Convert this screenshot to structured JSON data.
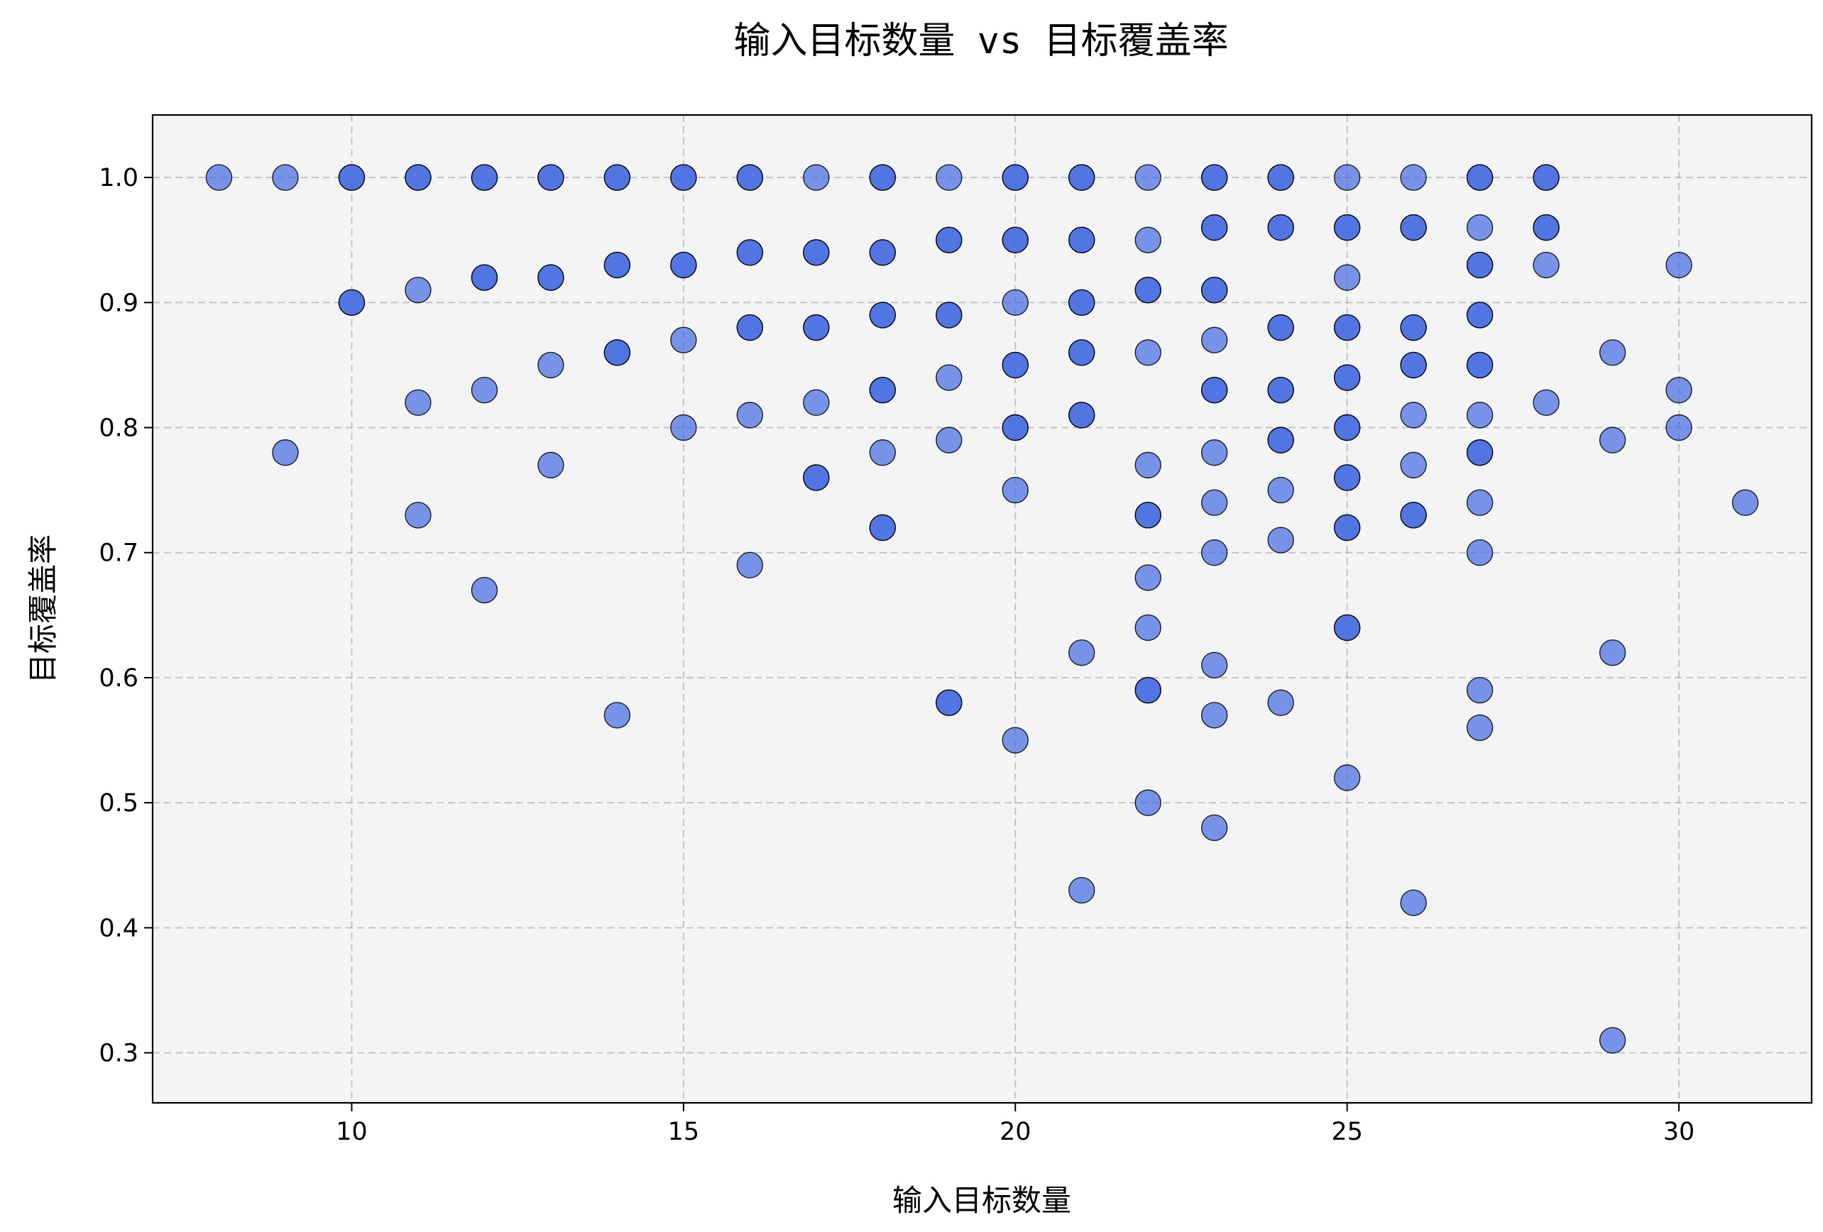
{
  "chart_data": {
    "type": "scatter",
    "title": "输入目标数量 vs 目标覆盖率",
    "xlabel": "输入目标数量",
    "ylabel": "目标覆盖率",
    "xlim": [
      7,
      32
    ],
    "ylim": [
      0.26,
      1.05
    ],
    "xticks": [
      10,
      15,
      20,
      25,
      30
    ],
    "yticks": [
      0.3,
      0.4,
      0.5,
      0.6,
      0.7,
      0.8,
      0.9,
      1.0
    ],
    "grid": true,
    "marker_color": "#4169e1",
    "background_color": "#f4f4f4",
    "series": [
      {
        "points": [
          [
            8,
            1.0
          ],
          [
            9,
            1.0
          ],
          [
            9,
            0.78
          ],
          [
            10,
            1.0
          ],
          [
            10,
            1.0
          ],
          [
            10,
            0.9
          ],
          [
            10,
            0.9
          ],
          [
            11,
            1.0
          ],
          [
            11,
            1.0
          ],
          [
            11,
            0.91
          ],
          [
            11,
            0.82
          ],
          [
            11,
            0.73
          ],
          [
            12,
            1.0
          ],
          [
            12,
            1.0
          ],
          [
            12,
            0.92
          ],
          [
            12,
            0.92
          ],
          [
            12,
            0.83
          ],
          [
            12,
            0.67
          ],
          [
            13,
            1.0
          ],
          [
            13,
            1.0
          ],
          [
            13,
            0.92
          ],
          [
            13,
            0.92
          ],
          [
            13,
            0.85
          ],
          [
            13,
            0.77
          ],
          [
            14,
            1.0
          ],
          [
            14,
            1.0
          ],
          [
            14,
            0.93
          ],
          [
            14,
            0.93
          ],
          [
            14,
            0.86
          ],
          [
            14,
            0.86
          ],
          [
            14,
            0.57
          ],
          [
            15,
            1.0
          ],
          [
            15,
            1.0
          ],
          [
            15,
            0.93
          ],
          [
            15,
            0.93
          ],
          [
            15,
            0.87
          ],
          [
            15,
            0.8
          ],
          [
            16,
            1.0
          ],
          [
            16,
            1.0
          ],
          [
            16,
            0.94
          ],
          [
            16,
            0.94
          ],
          [
            16,
            0.88
          ],
          [
            16,
            0.88
          ],
          [
            16,
            0.81
          ],
          [
            16,
            0.69
          ],
          [
            17,
            1.0
          ],
          [
            17,
            0.94
          ],
          [
            17,
            0.94
          ],
          [
            17,
            0.88
          ],
          [
            17,
            0.88
          ],
          [
            17,
            0.82
          ],
          [
            17,
            0.76
          ],
          [
            17,
            0.76
          ],
          [
            18,
            1.0
          ],
          [
            18,
            1.0
          ],
          [
            18,
            0.94
          ],
          [
            18,
            0.94
          ],
          [
            18,
            0.89
          ],
          [
            18,
            0.89
          ],
          [
            18,
            0.83
          ],
          [
            18,
            0.83
          ],
          [
            18,
            0.78
          ],
          [
            18,
            0.72
          ],
          [
            18,
            0.72
          ],
          [
            19,
            1.0
          ],
          [
            19,
            0.95
          ],
          [
            19,
            0.95
          ],
          [
            19,
            0.89
          ],
          [
            19,
            0.89
          ],
          [
            19,
            0.84
          ],
          [
            19,
            0.79
          ],
          [
            19,
            0.58
          ],
          [
            19,
            0.58
          ],
          [
            20,
            1.0
          ],
          [
            20,
            1.0
          ],
          [
            20,
            0.95
          ],
          [
            20,
            0.95
          ],
          [
            20,
            0.9
          ],
          [
            20,
            0.85
          ],
          [
            20,
            0.85
          ],
          [
            20,
            0.8
          ],
          [
            20,
            0.8
          ],
          [
            20,
            0.75
          ],
          [
            20,
            0.55
          ],
          [
            21,
            1.0
          ],
          [
            21,
            1.0
          ],
          [
            21,
            0.95
          ],
          [
            21,
            0.95
          ],
          [
            21,
            0.9
          ],
          [
            21,
            0.9
          ],
          [
            21,
            0.86
          ],
          [
            21,
            0.86
          ],
          [
            21,
            0.81
          ],
          [
            21,
            0.81
          ],
          [
            21,
            0.62
          ],
          [
            21,
            0.43
          ],
          [
            22,
            1.0
          ],
          [
            22,
            0.95
          ],
          [
            22,
            0.91
          ],
          [
            22,
            0.91
          ],
          [
            22,
            0.86
          ],
          [
            22,
            0.77
          ],
          [
            22,
            0.73
          ],
          [
            22,
            0.73
          ],
          [
            22,
            0.68
          ],
          [
            22,
            0.64
          ],
          [
            22,
            0.59
          ],
          [
            22,
            0.59
          ],
          [
            22,
            0.5
          ],
          [
            23,
            1.0
          ],
          [
            23,
            1.0
          ],
          [
            23,
            0.96
          ],
          [
            23,
            0.96
          ],
          [
            23,
            0.91
          ],
          [
            23,
            0.91
          ],
          [
            23,
            0.87
          ],
          [
            23,
            0.83
          ],
          [
            23,
            0.83
          ],
          [
            23,
            0.78
          ],
          [
            23,
            0.74
          ],
          [
            23,
            0.7
          ],
          [
            23,
            0.61
          ],
          [
            23,
            0.57
          ],
          [
            23,
            0.48
          ],
          [
            24,
            1.0
          ],
          [
            24,
            1.0
          ],
          [
            24,
            0.96
          ],
          [
            24,
            0.96
          ],
          [
            24,
            0.88
          ],
          [
            24,
            0.88
          ],
          [
            24,
            0.83
          ],
          [
            24,
            0.83
          ],
          [
            24,
            0.79
          ],
          [
            24,
            0.79
          ],
          [
            24,
            0.75
          ],
          [
            24,
            0.71
          ],
          [
            24,
            0.58
          ],
          [
            25,
            1.0
          ],
          [
            25,
            0.96
          ],
          [
            25,
            0.96
          ],
          [
            25,
            0.92
          ],
          [
            25,
            0.88
          ],
          [
            25,
            0.88
          ],
          [
            25,
            0.84
          ],
          [
            25,
            0.84
          ],
          [
            25,
            0.8
          ],
          [
            25,
            0.8
          ],
          [
            25,
            0.76
          ],
          [
            25,
            0.76
          ],
          [
            25,
            0.72
          ],
          [
            25,
            0.72
          ],
          [
            25,
            0.64
          ],
          [
            25,
            0.64
          ],
          [
            25,
            0.52
          ],
          [
            26,
            1.0
          ],
          [
            26,
            0.96
          ],
          [
            26,
            0.96
          ],
          [
            26,
            0.88
          ],
          [
            26,
            0.88
          ],
          [
            26,
            0.85
          ],
          [
            26,
            0.85
          ],
          [
            26,
            0.81
          ],
          [
            26,
            0.77
          ],
          [
            26,
            0.73
          ],
          [
            26,
            0.73
          ],
          [
            26,
            0.42
          ],
          [
            27,
            1.0
          ],
          [
            27,
            1.0
          ],
          [
            27,
            0.96
          ],
          [
            27,
            0.93
          ],
          [
            27,
            0.93
          ],
          [
            27,
            0.89
          ],
          [
            27,
            0.89
          ],
          [
            27,
            0.85
          ],
          [
            27,
            0.85
          ],
          [
            27,
            0.81
          ],
          [
            27,
            0.78
          ],
          [
            27,
            0.78
          ],
          [
            27,
            0.74
          ],
          [
            27,
            0.7
          ],
          [
            27,
            0.59
          ],
          [
            27,
            0.56
          ],
          [
            28,
            1.0
          ],
          [
            28,
            1.0
          ],
          [
            28,
            0.96
          ],
          [
            28,
            0.96
          ],
          [
            28,
            0.93
          ],
          [
            28,
            0.82
          ],
          [
            29,
            0.86
          ],
          [
            29,
            0.79
          ],
          [
            29,
            0.62
          ],
          [
            29,
            0.31
          ],
          [
            30,
            0.93
          ],
          [
            30,
            0.83
          ],
          [
            30,
            0.8
          ],
          [
            31,
            0.74
          ]
        ]
      }
    ]
  }
}
